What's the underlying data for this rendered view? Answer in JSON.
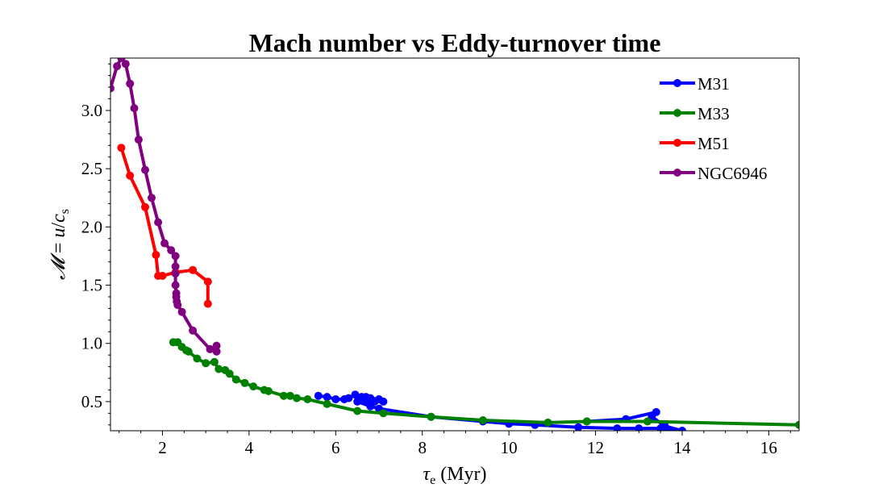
{
  "chart_data": {
    "type": "line",
    "title": "Mach number vs Eddy-turnover time",
    "xlabel": "τe (Myr)",
    "ylabel": "𝓜 = u/cs",
    "xlim": [
      0.8,
      16.7
    ],
    "ylim": [
      0.25,
      3.45
    ],
    "xticks": [
      2,
      4,
      6,
      8,
      10,
      12,
      14,
      16
    ],
    "yticks": [
      0.5,
      1.0,
      1.5,
      2.0,
      2.5,
      3.0
    ],
    "xtick_labels": [
      "2",
      "4",
      "6",
      "8",
      "10",
      "12",
      "14",
      "16"
    ],
    "ytick_labels": [
      "0.5",
      "1.0",
      "1.5",
      "2.0",
      "2.5",
      "3.0"
    ],
    "legend_position": "top-right",
    "grid": false,
    "series": [
      {
        "name": "M31",
        "color": "#0000ff",
        "points": [
          [
            5.6,
            0.55
          ],
          [
            5.8,
            0.54
          ],
          [
            6.0,
            0.52
          ],
          [
            6.2,
            0.52
          ],
          [
            6.3,
            0.53
          ],
          [
            6.45,
            0.56
          ],
          [
            6.6,
            0.54
          ],
          [
            6.7,
            0.54
          ],
          [
            6.8,
            0.53
          ],
          [
            7.0,
            0.52
          ],
          [
            7.1,
            0.5
          ],
          [
            6.9,
            0.5
          ],
          [
            6.7,
            0.51
          ],
          [
            6.5,
            0.5
          ],
          [
            6.8,
            0.46
          ],
          [
            7.0,
            0.44
          ],
          [
            8.2,
            0.37
          ],
          [
            9.4,
            0.33
          ],
          [
            10.0,
            0.31
          ],
          [
            10.6,
            0.3
          ],
          [
            11.6,
            0.28
          ],
          [
            12.5,
            0.27
          ],
          [
            13.0,
            0.27
          ],
          [
            13.5,
            0.27
          ],
          [
            14.0,
            0.25
          ],
          [
            13.6,
            0.29
          ],
          [
            13.3,
            0.37
          ],
          [
            13.4,
            0.41
          ],
          [
            12.7,
            0.35
          ],
          [
            11.8,
            0.33
          ]
        ]
      },
      {
        "name": "M33",
        "color": "#008000",
        "points": [
          [
            2.25,
            1.01
          ],
          [
            2.35,
            1.01
          ],
          [
            2.45,
            0.97
          ],
          [
            2.55,
            0.94
          ],
          [
            2.6,
            0.93
          ],
          [
            2.8,
            0.87
          ],
          [
            3.0,
            0.83
          ],
          [
            3.2,
            0.84
          ],
          [
            3.3,
            0.78
          ],
          [
            3.45,
            0.77
          ],
          [
            3.55,
            0.74
          ],
          [
            3.7,
            0.69
          ],
          [
            3.9,
            0.66
          ],
          [
            4.1,
            0.63
          ],
          [
            4.35,
            0.6
          ],
          [
            4.45,
            0.59
          ],
          [
            4.8,
            0.55
          ],
          [
            4.95,
            0.55
          ],
          [
            5.1,
            0.53
          ],
          [
            5.35,
            0.52
          ],
          [
            5.8,
            0.48
          ],
          [
            6.5,
            0.42
          ],
          [
            7.1,
            0.4
          ],
          [
            8.2,
            0.37
          ],
          [
            9.4,
            0.34
          ],
          [
            10.9,
            0.32
          ],
          [
            11.8,
            0.33
          ],
          [
            13.2,
            0.33
          ],
          [
            16.7,
            0.3
          ]
        ]
      },
      {
        "name": "M51",
        "color": "#ff0000",
        "points": [
          [
            1.05,
            2.68
          ],
          [
            1.25,
            2.44
          ],
          [
            1.6,
            2.17
          ],
          [
            1.85,
            1.76
          ],
          [
            1.9,
            1.58
          ],
          [
            2.0,
            1.58
          ],
          [
            2.3,
            1.61
          ],
          [
            2.7,
            1.63
          ],
          [
            3.05,
            1.53
          ],
          [
            3.05,
            1.34
          ]
        ]
      },
      {
        "name": "NGC6946",
        "color": "#800080",
        "points": [
          [
            0.8,
            3.19
          ],
          [
            0.95,
            3.38
          ],
          [
            1.05,
            3.45
          ],
          [
            1.15,
            3.4
          ],
          [
            1.25,
            3.23
          ],
          [
            1.35,
            3.02
          ],
          [
            1.45,
            2.75
          ],
          [
            1.6,
            2.49
          ],
          [
            1.75,
            2.25
          ],
          [
            1.9,
            2.04
          ],
          [
            2.05,
            1.86
          ],
          [
            2.2,
            1.8
          ],
          [
            2.3,
            1.75
          ],
          [
            2.3,
            1.66
          ],
          [
            2.3,
            1.6
          ],
          [
            2.3,
            1.5
          ],
          [
            2.32,
            1.43
          ],
          [
            2.32,
            1.4
          ],
          [
            2.33,
            1.36
          ],
          [
            2.35,
            1.33
          ],
          [
            2.45,
            1.27
          ],
          [
            2.7,
            1.11
          ],
          [
            3.1,
            0.95
          ],
          [
            3.25,
            0.93
          ],
          [
            3.25,
            0.98
          ]
        ]
      }
    ]
  }
}
